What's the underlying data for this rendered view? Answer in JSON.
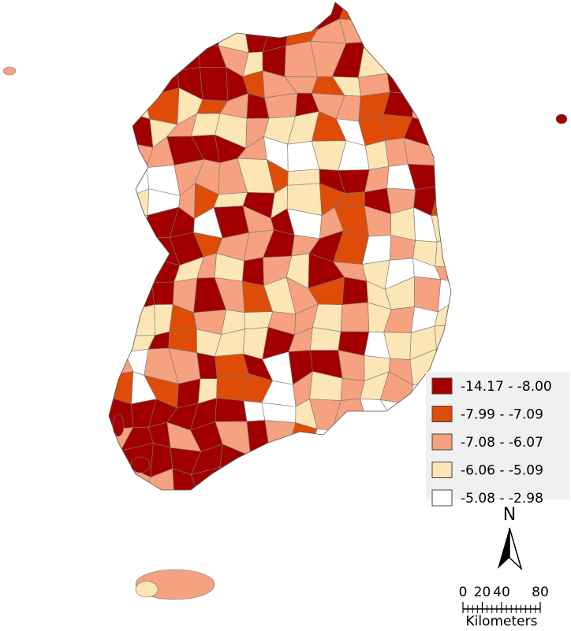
{
  "legend": {
    "items": [
      {
        "label": "-14.17 - -8.00",
        "color": "#a20000"
      },
      {
        "label": "-7.99 - -7.09",
        "color": "#de4c08"
      },
      {
        "label": "-7.08 - -6.07",
        "color": "#f6a17f"
      },
      {
        "label": "-6.06 - -5.09",
        "color": "#fde6b6"
      },
      {
        "label": "-5.08 - -2.98",
        "color": "#ffffff"
      }
    ]
  },
  "north_arrow": {
    "label": "N"
  },
  "scale_bar": {
    "ticks": [
      0,
      20,
      40,
      80
    ],
    "unit": "Kilometers"
  }
}
